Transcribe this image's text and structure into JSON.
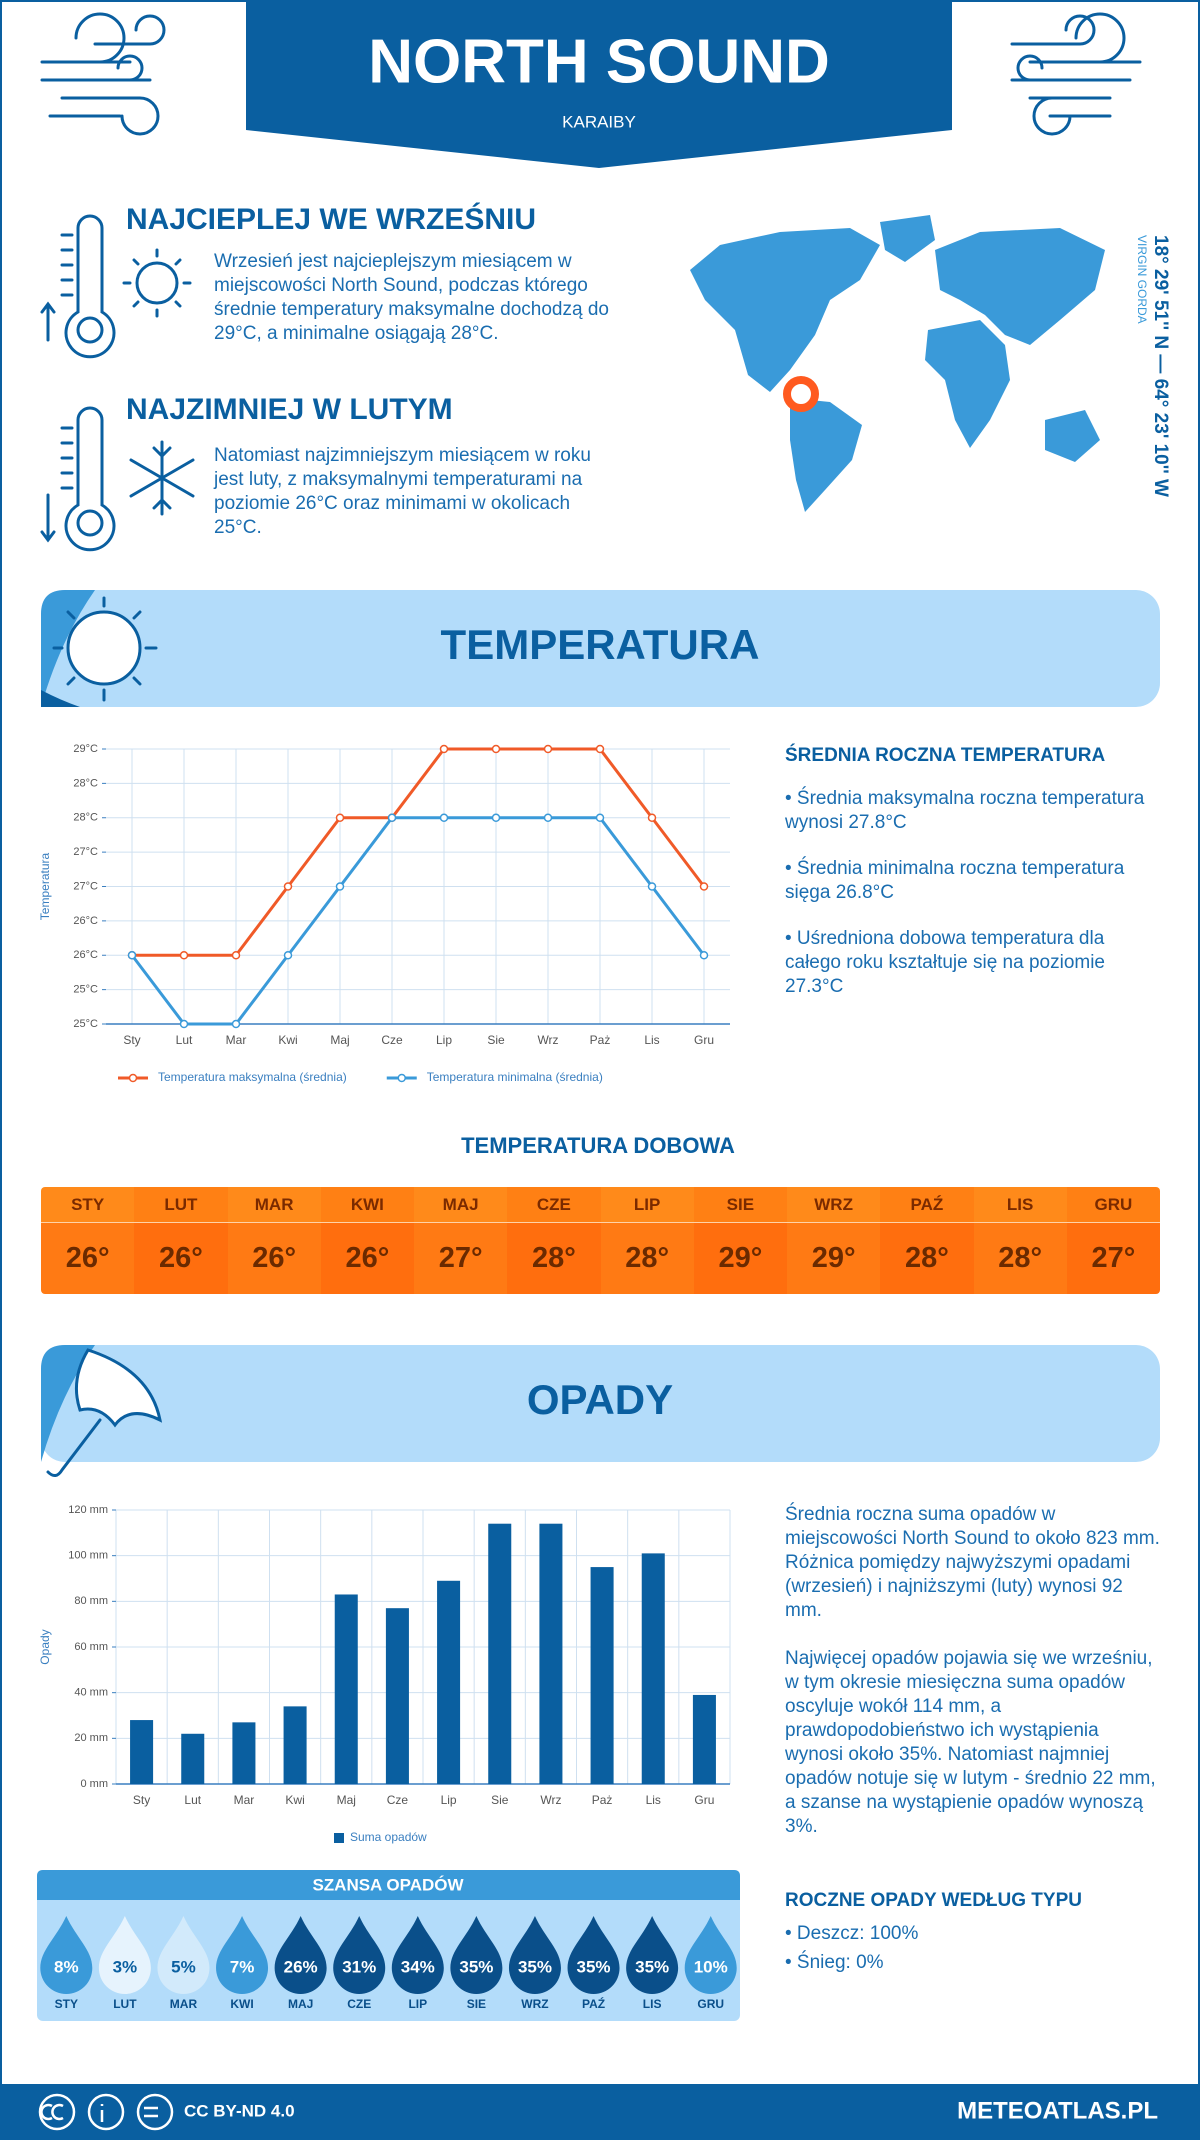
{
  "header": {
    "title": "NORTH SOUND",
    "subtitle": "KARAIBY"
  },
  "warmest": {
    "title": "NAJCIEPLEJ WE WRZEŚNIU",
    "text": "Wrzesień jest najcieplejszym miesiącem w miejscowości North Sound, podczas którego średnie temperatury maksymalne dochodzą do 29°C, a minimalne osiągają 28°C."
  },
  "coldest": {
    "title": "NAJZIMNIEJ W LUTYM",
    "text": "Natomiast najzimniejszym miesiącem w roku jest luty, z maksymalnymi temperaturami na poziomie 26°C oraz minimami w okolicach 25°C."
  },
  "location": {
    "coordinates": "18° 29' 51'' N — 64° 23' 10'' W",
    "region": "VIRGIN GORDA"
  },
  "temperature_section": {
    "heading": "TEMPERATURA",
    "summary_title": "ŚREDNIA ROCZNA TEMPERATURA",
    "bullets": [
      "• Średnia maksymalna roczna temperatura wynosi 27.8°C",
      "• Średnia minimalna roczna temperatura sięga 26.8°C",
      "• Uśredniona dobowa temperatura dla całego roku kształtuje się na poziomie 27.3°C"
    ]
  },
  "chart_data": [
    {
      "type": "line",
      "y_label": "Temperatura",
      "categories": [
        "Sty",
        "Lut",
        "Mar",
        "Kwi",
        "Maj",
        "Cze",
        "Lip",
        "Sie",
        "Wrz",
        "Paż",
        "Lis",
        "Gru"
      ],
      "series": [
        {
          "name": "Temperatura maksymalna (średnia)",
          "color": "#f05a28",
          "values": [
            26,
            26,
            26,
            27,
            28,
            28,
            29,
            29,
            29,
            29,
            28,
            27
          ]
        },
        {
          "name": "Temperatura minimalna (średnia)",
          "color": "#3a9ad9",
          "values": [
            26,
            25,
            25,
            26,
            27,
            28,
            28,
            28,
            28,
            28,
            27,
            26
          ]
        }
      ],
      "ylim": [
        25,
        29
      ],
      "yticks": [
        {
          "value": 25,
          "label": "25°C"
        },
        {
          "value": 25.5,
          "label": "25°C"
        },
        {
          "value": 26,
          "label": "26°C"
        },
        {
          "value": 26.5,
          "label": "26°C"
        },
        {
          "value": 27,
          "label": "27°C"
        },
        {
          "value": 27.5,
          "label": "27°C"
        },
        {
          "value": 28,
          "label": "28°C"
        },
        {
          "value": 28.5,
          "label": "28°C"
        },
        {
          "value": 29,
          "label": "29°C"
        }
      ],
      "grid": true
    },
    {
      "type": "bar",
      "y_label": "Opady",
      "categories": [
        "Sty",
        "Lut",
        "Mar",
        "Kwi",
        "Maj",
        "Cze",
        "Lip",
        "Sie",
        "Wrz",
        "Paż",
        "Lis",
        "Gru"
      ],
      "series": [
        {
          "name": "Suma opadów",
          "color": "#0a5fa0",
          "values": [
            28,
            22,
            27,
            34,
            83,
            77,
            89,
            114,
            114,
            95,
            101,
            39
          ]
        }
      ],
      "ylim": [
        0,
        120
      ],
      "yticks": [
        {
          "value": 0,
          "label": "0 mm"
        },
        {
          "value": 20,
          "label": "20 mm"
        },
        {
          "value": 40,
          "label": "40 mm"
        },
        {
          "value": 60,
          "label": "60 mm"
        },
        {
          "value": 80,
          "label": "80 mm"
        },
        {
          "value": 100,
          "label": "100 mm"
        },
        {
          "value": 120,
          "label": "120 mm"
        }
      ],
      "grid": true
    }
  ],
  "daily_temperature": {
    "title": "TEMPERATURA DOBOWA",
    "months": [
      "STY",
      "LUT",
      "MAR",
      "KWI",
      "MAJ",
      "CZE",
      "LIP",
      "SIE",
      "WRZ",
      "PAŹ",
      "LIS",
      "GRU"
    ],
    "values": [
      "26°",
      "26°",
      "26°",
      "26°",
      "27°",
      "28°",
      "28°",
      "29°",
      "29°",
      "28°",
      "28°",
      "27°"
    ]
  },
  "precipitation_section": {
    "heading": "OPADY",
    "paragraphs": [
      "Średnia roczna suma opadów w miejscowości North Sound to około 823 mm. Różnica pomiędzy najwyższymi opadami (wrzesień) i najniższymi (luty) wynosi 92 mm.",
      "Najwięcej opadów pojawia się we wrześniu, w tym okresie miesięczna suma opadów oscyluje wokół 114 mm, a prawdopodobieństwo ich wystąpienia wynosi około 35%. Natomiast najmniej opadów notuje się w lutym - średnio 22 mm, a szanse na wystąpienie opadów wynoszą 3%."
    ]
  },
  "precipitation_chance": {
    "title": "SZANSA OPADÓW",
    "months": [
      "STY",
      "LUT",
      "MAR",
      "KWI",
      "MAJ",
      "CZE",
      "LIP",
      "SIE",
      "WRZ",
      "PAŹ",
      "LIS",
      "GRU"
    ],
    "values": [
      "8%",
      "3%",
      "5%",
      "7%",
      "26%",
      "31%",
      "34%",
      "35%",
      "35%",
      "35%",
      "35%",
      "10%"
    ]
  },
  "precipitation_type": {
    "title": "ROCZNE OPADY WEDŁUG TYPU",
    "items": [
      "• Deszcz: 100%",
      "• Śnieg: 0%"
    ]
  },
  "footer": {
    "license": "CC BY-ND 4.0",
    "site": "METEOATLAS.PL"
  }
}
